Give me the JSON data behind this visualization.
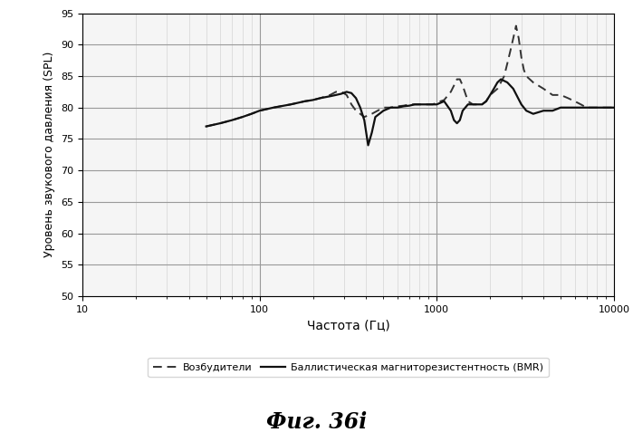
{
  "title": "Фиг. 36i",
  "xlabel": "Частота (Гц)",
  "ylabel": "Уровень звукового давления (SPL)",
  "xlim": [
    10,
    10000
  ],
  "ylim": [
    50,
    95
  ],
  "yticks": [
    50,
    55,
    60,
    65,
    70,
    75,
    80,
    85,
    90,
    95
  ],
  "background_color": "#ffffff",
  "legend_dashed": "Возбудители",
  "legend_solid": "Баллистическая магниторезистентность (BMR)",
  "bmr_color": "#111111",
  "exc_color": "#333333",
  "bmr_freq": [
    50,
    60,
    70,
    80,
    90,
    100,
    120,
    150,
    180,
    200,
    220,
    250,
    270,
    290,
    310,
    330,
    350,
    370,
    390,
    410,
    430,
    450,
    500,
    550,
    600,
    650,
    700,
    750,
    800,
    850,
    900,
    950,
    1000,
    1100,
    1200,
    1250,
    1300,
    1350,
    1400,
    1500,
    1600,
    1700,
    1800,
    1900,
    2000,
    2100,
    2200,
    2300,
    2500,
    2700,
    3000,
    3200,
    3500,
    4000,
    4500,
    5000,
    5500,
    6000,
    6500,
    7000,
    8000,
    9000,
    10000
  ],
  "bmr_spl": [
    77,
    77.5,
    78,
    78.5,
    79,
    79.5,
    80,
    80.5,
    81,
    81.2,
    81.5,
    81.8,
    82,
    82.2,
    82.5,
    82.3,
    81.5,
    80,
    78,
    74,
    76,
    78.5,
    79.5,
    80,
    80,
    80.2,
    80.3,
    80.5,
    80.5,
    80.5,
    80.5,
    80.5,
    80.5,
    81.0,
    79.5,
    78,
    77.5,
    78,
    79.5,
    80.5,
    80.5,
    80.5,
    80.5,
    81,
    82,
    83,
    84,
    84.5,
    84,
    83,
    80.5,
    79.5,
    79,
    79.5,
    79.5,
    80,
    80,
    80,
    80,
    80,
    80,
    80,
    80
  ],
  "exc_freq": [
    50,
    60,
    70,
    80,
    90,
    100,
    120,
    150,
    180,
    200,
    220,
    250,
    270,
    290,
    310,
    330,
    350,
    390,
    430,
    500,
    550,
    600,
    650,
    700,
    750,
    800,
    850,
    900,
    950,
    1000,
    1100,
    1200,
    1250,
    1300,
    1350,
    1400,
    1500,
    1600,
    1700,
    1800,
    1900,
    2000,
    2100,
    2200,
    2300,
    2400,
    2500,
    2600,
    2700,
    2800,
    2900,
    3000,
    3100,
    3200,
    3500,
    4000,
    4500,
    5000,
    5500,
    6000,
    6500,
    7000,
    8000,
    9000,
    10000
  ],
  "exc_spl": [
    77,
    77.5,
    78,
    78.5,
    79,
    79.5,
    80,
    80.5,
    81,
    81.2,
    81.5,
    82,
    82.5,
    82.5,
    82,
    80.5,
    79.5,
    78.5,
    79,
    80,
    80,
    80.2,
    80.3,
    80.5,
    80.5,
    80.5,
    80.5,
    80.5,
    80.5,
    80.8,
    81.2,
    82.5,
    83.5,
    84.5,
    84.5,
    83.5,
    81,
    80.5,
    80.5,
    80.5,
    81,
    82,
    82.5,
    83,
    84,
    85,
    87,
    89,
    91,
    93,
    91,
    88,
    86,
    85,
    84,
    83,
    82,
    82,
    81.5,
    81,
    80.5,
    80,
    80,
    80,
    80
  ]
}
